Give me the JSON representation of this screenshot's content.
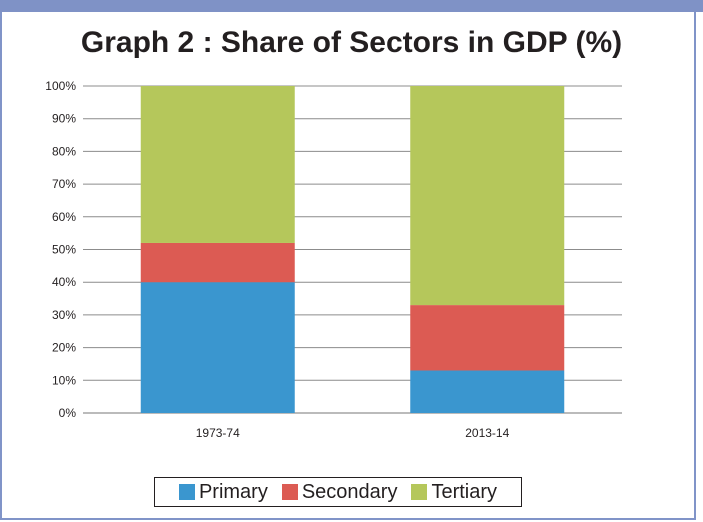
{
  "chart_data": {
    "type": "bar",
    "stacked": true,
    "title": "Graph 2 : Share of Sectors in GDP (%)",
    "categories": [
      "1973-74",
      "2013-14"
    ],
    "series": [
      {
        "name": "Primary",
        "values": [
          40,
          13
        ],
        "color": "#3a96cf"
      },
      {
        "name": "Secondary",
        "values": [
          12,
          20
        ],
        "color": "#dc5b53"
      },
      {
        "name": "Tertiary",
        "values": [
          48,
          67
        ],
        "color": "#b5c75b"
      }
    ],
    "ylim": [
      0,
      100
    ],
    "yticks": [
      "0%",
      "10%",
      "20%",
      "30%",
      "40%",
      "50%",
      "60%",
      "70%",
      "80%",
      "90%",
      "100%"
    ],
    "xlabel": "",
    "ylabel": "",
    "grid": true,
    "legend_position": "bottom"
  }
}
